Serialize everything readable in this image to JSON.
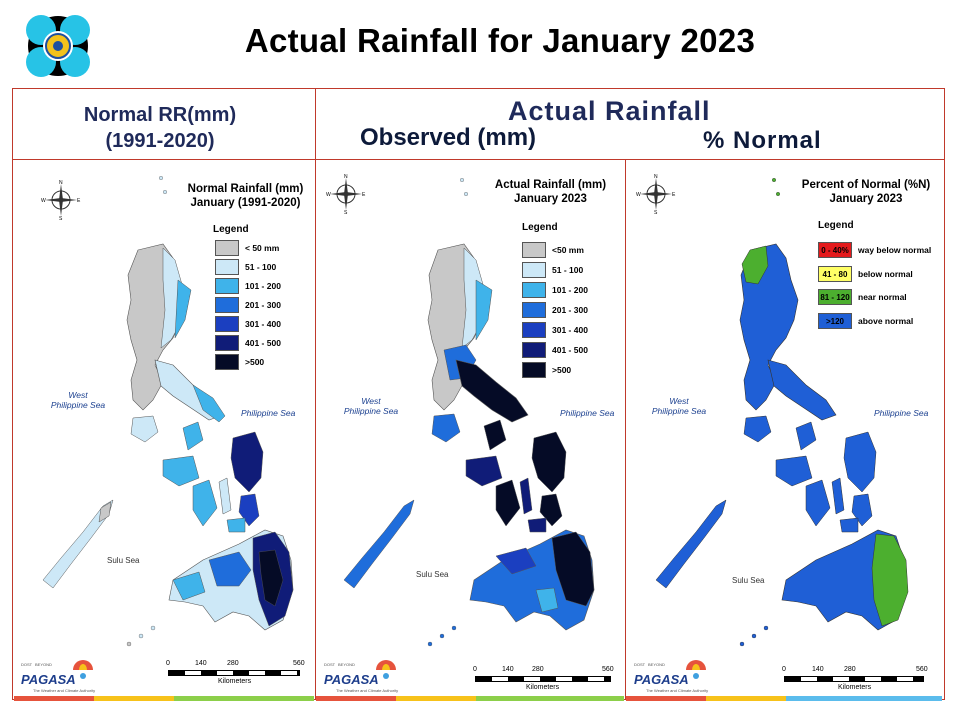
{
  "header": {
    "title": "Actual Rainfall for January 2023",
    "normal_label_line1": "Normal RR(mm)",
    "normal_label_line2": "(1991-2020)",
    "actual_label": "Actual Rainfall",
    "observed_label": "Observed (mm)",
    "percent_label": "% Normal"
  },
  "colors": {
    "frame": "#c0392b",
    "gray": "#c8c8c8",
    "lightblue": "#cde8f7",
    "skyblue": "#3fb3ea",
    "blue": "#1f6ddb",
    "royal": "#1b3fc0",
    "navy": "#101c78",
    "black": "#050b26",
    "red": "#e41a1c",
    "yellow": "#ffff66",
    "green": "#4caf2f",
    "pct_blue": "#1f5fd6"
  },
  "panels": {
    "normal": {
      "title_line1": "Normal Rainfall (mm)",
      "title_line2": "January (1991-2020)",
      "legend_title": "Legend",
      "legend": [
        "< 50 mm",
        "51 - 100",
        "101 - 200",
        "201 - 300",
        "301 - 400",
        "401 - 500",
        ">500"
      ]
    },
    "actual": {
      "title_line1": "Actual Rainfall (mm)",
      "title_line2": "January 2023",
      "legend_title": "Legend",
      "legend": [
        "<50 mm",
        "51 - 100",
        "101 - 200",
        "201 - 300",
        "301 - 400",
        "401 - 500",
        ">500"
      ]
    },
    "percent": {
      "title_line1": "Percent of Normal (%N)",
      "title_line2": "January 2023",
      "legend_title": "Legend",
      "legend": [
        {
          "range": "0 - 40%",
          "desc": "way below normal"
        },
        {
          "range": "41 - 80",
          "desc": "below normal"
        },
        {
          "range": "81 - 120",
          "desc": "near normal"
        },
        {
          "range": ">120",
          "desc": "above normal"
        }
      ]
    }
  },
  "seas": {
    "west_line1": "West",
    "west_line2": "Philippine Sea",
    "east": "Philippine Sea",
    "sulu": "Sulu Sea"
  },
  "compass": {
    "n": "N",
    "s": "S",
    "e": "E",
    "w": "W"
  },
  "scale": {
    "ticks": [
      "0",
      "140",
      "280",
      "560"
    ],
    "unit": "Kilometers"
  },
  "branding": {
    "agency": "PAGASA",
    "prefix": "DOST",
    "tagline": "BEYOND",
    "sub": "The Weather and Climate Authority"
  }
}
